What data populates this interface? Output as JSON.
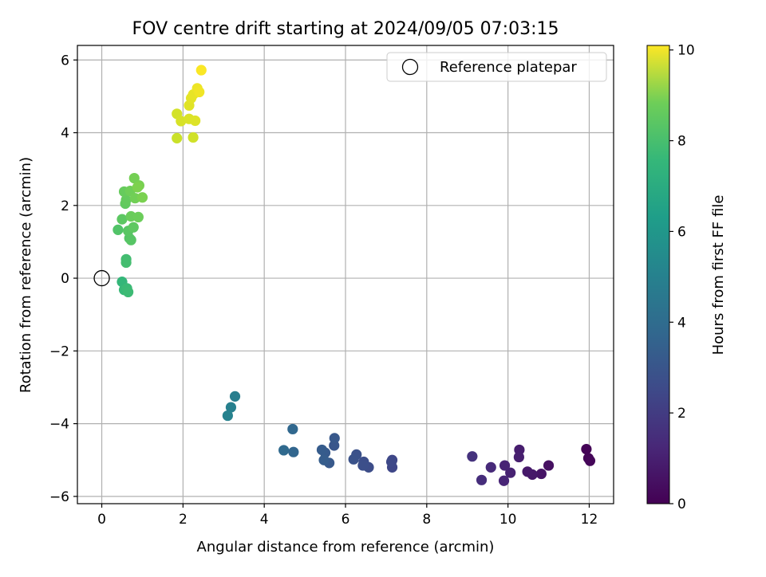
{
  "chart_data": {
    "type": "scatter",
    "title": "FOV centre drift starting at 2024/09/05 07:03:15",
    "xlabel": "Angular distance from reference (arcmin)",
    "ylabel": "Rotation from reference (arcmin)",
    "xlim": [
      -0.6,
      12.6
    ],
    "ylim": [
      -6.2,
      6.4
    ],
    "xticks": [
      0,
      2,
      4,
      6,
      8,
      10,
      12
    ],
    "xtick_labels": [
      "0",
      "2",
      "4",
      "6",
      "8",
      "10",
      "12"
    ],
    "yticks": [
      -6,
      -4,
      -2,
      0,
      2,
      4,
      6
    ],
    "ytick_labels": [
      "−6",
      "−4",
      "−2",
      "0",
      "2",
      "4",
      "6"
    ],
    "grid": true,
    "legend": {
      "location": "upper right",
      "entries": [
        {
          "label": "Reference platepar",
          "marker": "open-circle"
        }
      ]
    },
    "reference_point": {
      "x": 0,
      "y": 0,
      "label": "Reference platepar"
    },
    "colorbar": {
      "label": "Hours from first FF file",
      "colormap": "viridis",
      "range": [
        0,
        10.1
      ],
      "ticks": [
        0,
        2,
        4,
        6,
        8,
        10
      ],
      "tick_labels": [
        "0",
        "2",
        "4",
        "6",
        "8",
        "10"
      ]
    },
    "series": [
      {
        "points": [
          {
            "x": 11.93,
            "y": -4.7,
            "t": 0.05
          },
          {
            "x": 11.98,
            "y": -4.95,
            "t": 0.1
          },
          {
            "x": 12.02,
            "y": -5.02,
            "t": 0.15
          },
          {
            "x": 11.0,
            "y": -5.15,
            "t": 0.45
          },
          {
            "x": 10.82,
            "y": -5.38,
            "t": 0.55
          },
          {
            "x": 10.6,
            "y": -5.4,
            "t": 0.65
          },
          {
            "x": 10.48,
            "y": -5.32,
            "t": 0.7
          },
          {
            "x": 10.28,
            "y": -4.72,
            "t": 0.8
          },
          {
            "x": 10.27,
            "y": -4.92,
            "t": 0.85
          },
          {
            "x": 10.06,
            "y": -5.35,
            "t": 0.95
          },
          {
            "x": 9.92,
            "y": -5.15,
            "t": 1.0
          },
          {
            "x": 9.9,
            "y": -5.57,
            "t": 1.05
          },
          {
            "x": 9.58,
            "y": -5.2,
            "t": 1.2
          },
          {
            "x": 9.35,
            "y": -5.55,
            "t": 1.3
          },
          {
            "x": 9.12,
            "y": -4.9,
            "t": 1.45
          },
          {
            "x": 7.15,
            "y": -5.0,
            "t": 2.1
          },
          {
            "x": 7.15,
            "y": -5.2,
            "t": 2.15
          },
          {
            "x": 7.13,
            "y": -5.05,
            "t": 2.2
          },
          {
            "x": 6.57,
            "y": -5.2,
            "t": 2.35
          },
          {
            "x": 6.45,
            "y": -5.05,
            "t": 2.4
          },
          {
            "x": 6.43,
            "y": -5.15,
            "t": 2.45
          },
          {
            "x": 6.27,
            "y": -4.85,
            "t": 2.5
          },
          {
            "x": 6.2,
            "y": -4.98,
            "t": 2.55
          },
          {
            "x": 5.72,
            "y": -4.6,
            "t": 2.7
          },
          {
            "x": 5.73,
            "y": -4.4,
            "t": 2.75
          },
          {
            "x": 5.6,
            "y": -5.08,
            "t": 2.8
          },
          {
            "x": 5.5,
            "y": -4.8,
            "t": 2.85
          },
          {
            "x": 5.42,
            "y": -4.72,
            "t": 2.9
          },
          {
            "x": 5.47,
            "y": -5.0,
            "t": 2.95
          },
          {
            "x": 4.72,
            "y": -4.78,
            "t": 3.3
          },
          {
            "x": 4.7,
            "y": -4.15,
            "t": 3.35
          },
          {
            "x": 4.48,
            "y": -4.73,
            "t": 3.45
          },
          {
            "x": 3.28,
            "y": -3.25,
            "t": 4.3
          },
          {
            "x": 3.18,
            "y": -3.55,
            "t": 4.4
          },
          {
            "x": 3.1,
            "y": -3.78,
            "t": 4.5
          },
          {
            "x": 0.5,
            "y": -0.1,
            "t": 6.7
          },
          {
            "x": 0.55,
            "y": -0.32,
            "t": 6.8
          },
          {
            "x": 0.62,
            "y": -0.28,
            "t": 6.85
          },
          {
            "x": 0.65,
            "y": -0.38,
            "t": 6.9
          },
          {
            "x": 0.6,
            "y": 0.52,
            "t": 7.0
          },
          {
            "x": 0.6,
            "y": 0.43,
            "t": 7.05
          },
          {
            "x": 0.4,
            "y": 1.33,
            "t": 7.3
          },
          {
            "x": 0.68,
            "y": 1.1,
            "t": 7.35
          },
          {
            "x": 0.72,
            "y": 1.05,
            "t": 7.4
          },
          {
            "x": 0.65,
            "y": 1.3,
            "t": 7.45
          },
          {
            "x": 0.5,
            "y": 1.62,
            "t": 7.5
          },
          {
            "x": 0.78,
            "y": 1.4,
            "t": 7.55
          },
          {
            "x": 0.58,
            "y": 2.05,
            "t": 7.6
          },
          {
            "x": 0.6,
            "y": 2.15,
            "t": 7.65
          },
          {
            "x": 0.55,
            "y": 2.38,
            "t": 7.7
          },
          {
            "x": 0.72,
            "y": 1.7,
            "t": 7.75
          },
          {
            "x": 0.9,
            "y": 1.68,
            "t": 7.8
          },
          {
            "x": 0.7,
            "y": 2.4,
            "t": 7.85
          },
          {
            "x": 0.82,
            "y": 2.2,
            "t": 7.9
          },
          {
            "x": 0.8,
            "y": 2.75,
            "t": 7.95
          },
          {
            "x": 0.92,
            "y": 2.55,
            "t": 8.0
          },
          {
            "x": 1.0,
            "y": 2.22,
            "t": 8.05
          },
          {
            "x": 0.88,
            "y": 2.5,
            "t": 8.1
          },
          {
            "x": 1.85,
            "y": 3.85,
            "t": 9.3
          },
          {
            "x": 2.25,
            "y": 3.87,
            "t": 9.4
          },
          {
            "x": 1.85,
            "y": 4.52,
            "t": 9.45
          },
          {
            "x": 1.95,
            "y": 4.32,
            "t": 9.5
          },
          {
            "x": 2.15,
            "y": 4.38,
            "t": 9.55
          },
          {
            "x": 2.3,
            "y": 4.33,
            "t": 9.6
          },
          {
            "x": 2.15,
            "y": 4.75,
            "t": 9.65
          },
          {
            "x": 2.2,
            "y": 4.95,
            "t": 9.7
          },
          {
            "x": 2.25,
            "y": 5.05,
            "t": 9.75
          },
          {
            "x": 2.35,
            "y": 5.22,
            "t": 9.85
          },
          {
            "x": 2.4,
            "y": 5.12,
            "t": 9.9
          },
          {
            "x": 2.45,
            "y": 5.72,
            "t": 10.05
          }
        ]
      }
    ]
  }
}
